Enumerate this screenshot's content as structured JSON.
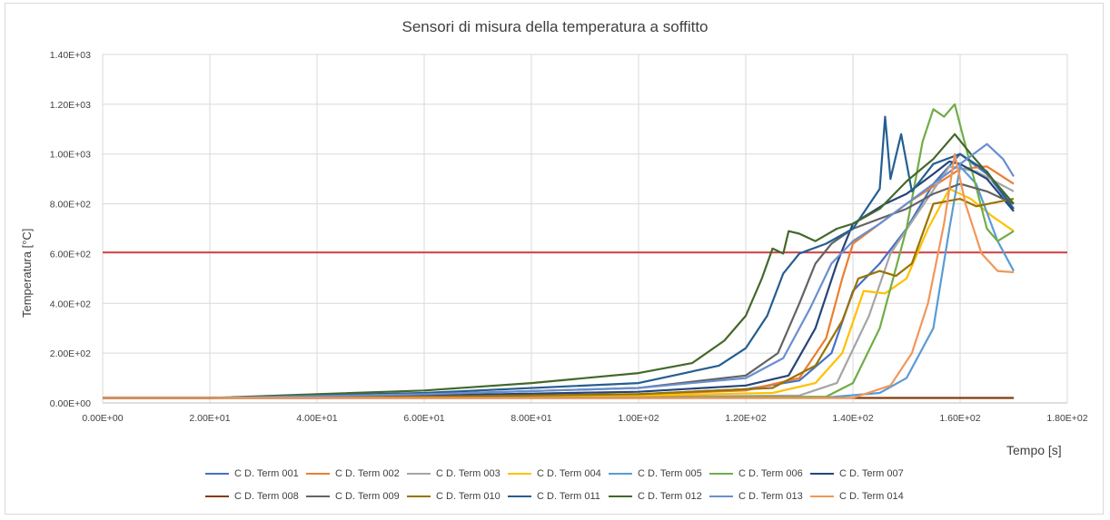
{
  "chart_data": {
    "type": "line",
    "title": "Sensori di misura della temperatura a soffitto",
    "xlabel": "Tempo [s]",
    "ylabel": "Temperatura [°C]",
    "xlim": [
      0,
      180
    ],
    "ylim": [
      0,
      1400
    ],
    "x_ticks": [
      "0.00E+00",
      "2.00E+01",
      "4.00E+01",
      "6.00E+01",
      "8.00E+01",
      "1.00E+02",
      "1.20E+02",
      "1.40E+02",
      "1.60E+02",
      "1.80E+02"
    ],
    "y_ticks": [
      "0.00E+00",
      "2.00E+02",
      "4.00E+02",
      "6.00E+02",
      "8.00E+02",
      "1.00E+03",
      "1.20E+03",
      "1.40E+03"
    ],
    "grid": true,
    "legend_position": "bottom",
    "reference_line": {
      "y": 605,
      "color": "#d62728"
    },
    "series": [
      {
        "name": "C D. Term 001",
        "color": "#4472C4",
        "points": [
          [
            0,
            20
          ],
          [
            20,
            20
          ],
          [
            60,
            25
          ],
          [
            100,
            35
          ],
          [
            120,
            55
          ],
          [
            130,
            90
          ],
          [
            136,
            200
          ],
          [
            140,
            450
          ],
          [
            145,
            560
          ],
          [
            150,
            700
          ],
          [
            155,
            880
          ],
          [
            160,
            1000
          ],
          [
            165,
            920
          ],
          [
            170,
            780
          ]
        ]
      },
      {
        "name": "C D. Term 002",
        "color": "#ED7D31",
        "points": [
          [
            0,
            20
          ],
          [
            20,
            20
          ],
          [
            60,
            25
          ],
          [
            100,
            35
          ],
          [
            120,
            50
          ],
          [
            130,
            100
          ],
          [
            135,
            260
          ],
          [
            138,
            500
          ],
          [
            140,
            640
          ],
          [
            145,
            720
          ],
          [
            150,
            800
          ],
          [
            155,
            870
          ],
          [
            160,
            940
          ],
          [
            165,
            950
          ],
          [
            170,
            880
          ]
        ]
      },
      {
        "name": "C D. Term 003",
        "color": "#A5A5A5",
        "points": [
          [
            0,
            20
          ],
          [
            40,
            20
          ],
          [
            100,
            25
          ],
          [
            130,
            30
          ],
          [
            137,
            80
          ],
          [
            143,
            350
          ],
          [
            147,
            600
          ],
          [
            152,
            760
          ],
          [
            158,
            950
          ],
          [
            163,
            930
          ],
          [
            170,
            850
          ]
        ]
      },
      {
        "name": "C D. Term 004",
        "color": "#FFC000",
        "points": [
          [
            0,
            20
          ],
          [
            20,
            20
          ],
          [
            60,
            22
          ],
          [
            100,
            30
          ],
          [
            125,
            40
          ],
          [
            133,
            80
          ],
          [
            138,
            200
          ],
          [
            142,
            450
          ],
          [
            146,
            440
          ],
          [
            150,
            500
          ],
          [
            154,
            700
          ],
          [
            158,
            860
          ],
          [
            162,
            820
          ],
          [
            166,
            750
          ],
          [
            170,
            690
          ]
        ]
      },
      {
        "name": "C D. Term 005",
        "color": "#5B9BD5",
        "points": [
          [
            0,
            20
          ],
          [
            40,
            20
          ],
          [
            100,
            20
          ],
          [
            135,
            22
          ],
          [
            145,
            40
          ],
          [
            150,
            100
          ],
          [
            155,
            300
          ],
          [
            158,
            700
          ],
          [
            160,
            950
          ],
          [
            163,
            880
          ],
          [
            167,
            650
          ],
          [
            170,
            530
          ]
        ]
      },
      {
        "name": "C D. Term 006",
        "color": "#70AD47",
        "points": [
          [
            0,
            20
          ],
          [
            40,
            20
          ],
          [
            100,
            22
          ],
          [
            135,
            25
          ],
          [
            140,
            80
          ],
          [
            145,
            300
          ],
          [
            150,
            700
          ],
          [
            153,
            1050
          ],
          [
            155,
            1180
          ],
          [
            157,
            1150
          ],
          [
            159,
            1200
          ],
          [
            162,
            950
          ],
          [
            165,
            700
          ],
          [
            167,
            650
          ],
          [
            170,
            690
          ]
        ]
      },
      {
        "name": "C D. Term 007",
        "color": "#264478",
        "points": [
          [
            0,
            20
          ],
          [
            20,
            20
          ],
          [
            60,
            30
          ],
          [
            100,
            45
          ],
          [
            120,
            70
          ],
          [
            128,
            110
          ],
          [
            133,
            300
          ],
          [
            137,
            560
          ],
          [
            140,
            720
          ],
          [
            143,
            760
          ],
          [
            146,
            800
          ],
          [
            150,
            840
          ],
          [
            155,
            920
          ],
          [
            158,
            970
          ],
          [
            160,
            960
          ],
          [
            165,
            900
          ],
          [
            170,
            770
          ]
        ]
      },
      {
        "name": "C D. Term 008",
        "color": "#843C0C",
        "points": [
          [
            0,
            20
          ],
          [
            170,
            20
          ]
        ]
      },
      {
        "name": "C D. Term 009",
        "color": "#636363",
        "points": [
          [
            0,
            20
          ],
          [
            20,
            20
          ],
          [
            60,
            35
          ],
          [
            100,
            60
          ],
          [
            120,
            110
          ],
          [
            126,
            200
          ],
          [
            130,
            400
          ],
          [
            133,
            560
          ],
          [
            136,
            640
          ],
          [
            140,
            700
          ],
          [
            145,
            740
          ],
          [
            150,
            780
          ],
          [
            155,
            840
          ],
          [
            160,
            880
          ],
          [
            165,
            850
          ],
          [
            170,
            800
          ]
        ]
      },
      {
        "name": "C D. Term 010",
        "color": "#997300",
        "points": [
          [
            0,
            20
          ],
          [
            20,
            20
          ],
          [
            60,
            25
          ],
          [
            100,
            35
          ],
          [
            125,
            60
          ],
          [
            133,
            150
          ],
          [
            138,
            330
          ],
          [
            141,
            500
          ],
          [
            145,
            530
          ],
          [
            148,
            510
          ],
          [
            151,
            560
          ],
          [
            155,
            800
          ],
          [
            160,
            820
          ],
          [
            163,
            790
          ],
          [
            170,
            820
          ]
        ]
      },
      {
        "name": "C D. Term 011",
        "color": "#255E91",
        "points": [
          [
            0,
            20
          ],
          [
            20,
            20
          ],
          [
            60,
            40
          ],
          [
            100,
            80
          ],
          [
            115,
            150
          ],
          [
            120,
            220
          ],
          [
            124,
            350
          ],
          [
            127,
            520
          ],
          [
            130,
            600
          ],
          [
            135,
            640
          ],
          [
            140,
            700
          ],
          [
            145,
            860
          ],
          [
            146,
            1150
          ],
          [
            147,
            900
          ],
          [
            149,
            1080
          ],
          [
            151,
            850
          ],
          [
            155,
            960
          ],
          [
            160,
            1000
          ],
          [
            165,
            930
          ],
          [
            170,
            780
          ]
        ]
      },
      {
        "name": "C D. Term 012",
        "color": "#43682B",
        "points": [
          [
            0,
            20
          ],
          [
            20,
            20
          ],
          [
            40,
            35
          ],
          [
            60,
            50
          ],
          [
            80,
            80
          ],
          [
            100,
            120
          ],
          [
            110,
            160
          ],
          [
            116,
            250
          ],
          [
            120,
            350
          ],
          [
            123,
            500
          ],
          [
            125,
            620
          ],
          [
            127,
            600
          ],
          [
            128,
            690
          ],
          [
            130,
            680
          ],
          [
            133,
            650
          ],
          [
            137,
            700
          ],
          [
            140,
            720
          ],
          [
            145,
            780
          ],
          [
            150,
            890
          ],
          [
            155,
            980
          ],
          [
            159,
            1080
          ],
          [
            162,
            1000
          ],
          [
            166,
            900
          ],
          [
            170,
            800
          ]
        ]
      },
      {
        "name": "C D. Term 013",
        "color": "#698ED0",
        "points": [
          [
            0,
            20
          ],
          [
            20,
            20
          ],
          [
            60,
            35
          ],
          [
            100,
            60
          ],
          [
            120,
            100
          ],
          [
            127,
            180
          ],
          [
            132,
            380
          ],
          [
            136,
            560
          ],
          [
            140,
            650
          ],
          [
            145,
            720
          ],
          [
            150,
            800
          ],
          [
            155,
            880
          ],
          [
            160,
            960
          ],
          [
            165,
            1040
          ],
          [
            168,
            980
          ],
          [
            170,
            910
          ]
        ]
      },
      {
        "name": "C D. Term 014",
        "color": "#F1975A",
        "points": [
          [
            0,
            20
          ],
          [
            40,
            20
          ],
          [
            100,
            20
          ],
          [
            140,
            20
          ],
          [
            147,
            70
          ],
          [
            151,
            200
          ],
          [
            154,
            400
          ],
          [
            157,
            720
          ],
          [
            159,
            1000
          ],
          [
            161,
            800
          ],
          [
            164,
            600
          ],
          [
            167,
            530
          ],
          [
            170,
            525
          ]
        ]
      }
    ]
  }
}
